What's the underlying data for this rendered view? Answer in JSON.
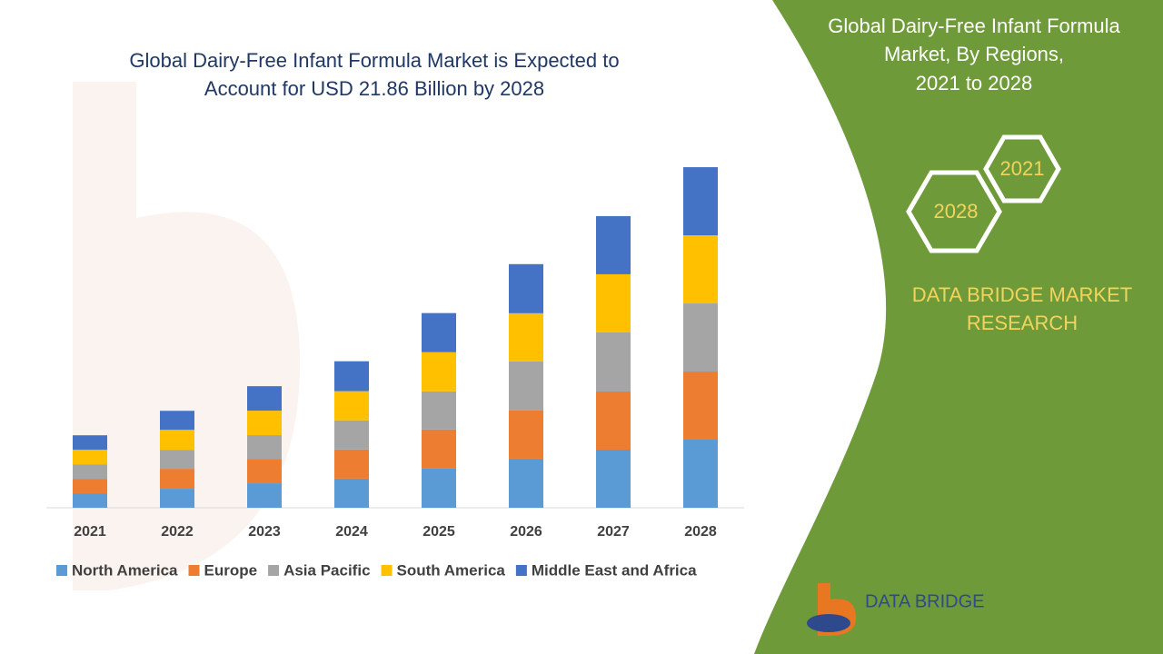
{
  "chart_data": {
    "type": "stacked-bar",
    "title": [
      "Global Dairy-Free Infant Formula Market is Expected to",
      "Account for USD 21.86 Billion by 2028"
    ],
    "categories": [
      "2021",
      "2022",
      "2023",
      "2024",
      "2025",
      "2026",
      "2027",
      "2028"
    ],
    "series": [
      {
        "name": "North America",
        "color": "#5b9bd5",
        "values": [
          0.93,
          1.22,
          1.57,
          1.87,
          2.51,
          3.15,
          3.73,
          4.37
        ]
      },
      {
        "name": "Europe",
        "color": "#ed7d31",
        "values": [
          0.93,
          1.28,
          1.57,
          1.87,
          2.51,
          3.09,
          3.73,
          4.37
        ]
      },
      {
        "name": "Asia Pacific",
        "color": "#a5a5a5",
        "values": [
          0.93,
          1.22,
          1.52,
          1.87,
          2.45,
          3.15,
          3.79,
          4.37
        ]
      },
      {
        "name": "South America",
        "color": "#ffc000",
        "values": [
          0.93,
          1.28,
          1.57,
          1.87,
          2.51,
          3.09,
          3.73,
          4.37
        ]
      },
      {
        "name": "Middle East and Africa",
        "color": "#4472c4",
        "values": [
          0.93,
          1.22,
          1.57,
          1.92,
          2.51,
          3.15,
          3.73,
          4.37
        ]
      }
    ],
    "ylim": [
      0,
      25
    ],
    "legend": "bottom"
  },
  "panel": {
    "title": [
      "Global Dairy-Free Infant Formula",
      "Market, By Regions,",
      "2021 to 2028"
    ],
    "hexagons": [
      "2021",
      "2028"
    ],
    "brand": [
      "DATA BRIDGE MARKET",
      "RESEARCH"
    ],
    "logo": "DATA BRIDGE"
  }
}
